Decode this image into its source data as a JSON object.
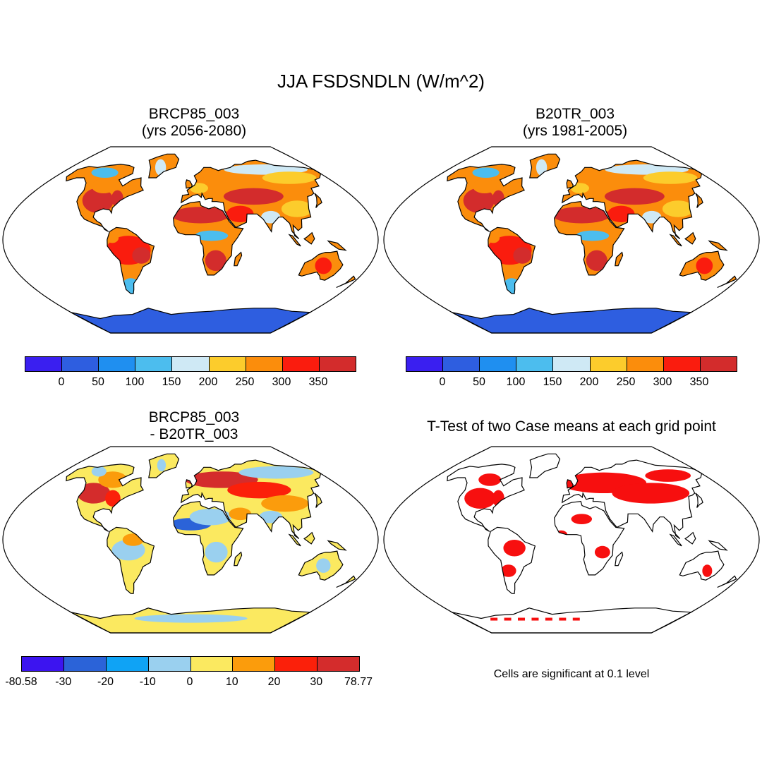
{
  "figure": {
    "title": "JJA FSDSNDLN (W/m^2)",
    "note": "Cells are significant at 0.1 level"
  },
  "panels": [
    {
      "id": "case",
      "title_line1": "BRCP85_003",
      "title_line2": "(yrs 2056-2080)",
      "colorbar": {
        "colors": [
          "#3a1ff0",
          "#2e5ee0",
          "#1f8ff0",
          "#4cbdee",
          "#cfe9f5",
          "#fccc2c",
          "#fb8d0c",
          "#fa1c0e",
          "#d32c2c"
        ],
        "labels": [
          "0",
          "50",
          "100",
          "150",
          "200",
          "250",
          "300",
          "350"
        ]
      }
    },
    {
      "id": "control",
      "title_line1": "B20TR_003",
      "title_line2": "(yrs 1981-2005)",
      "colorbar": {
        "colors": [
          "#3a1ff0",
          "#2e5ee0",
          "#1f8ff0",
          "#4cbdee",
          "#cfe9f5",
          "#fccc2c",
          "#fb8d0c",
          "#fa1c0e",
          "#d32c2c"
        ],
        "labels": [
          "0",
          "50",
          "100",
          "150",
          "200",
          "250",
          "300",
          "350"
        ]
      }
    },
    {
      "id": "difference",
      "title_line1": "BRCP85_003",
      "title_line2": "- B20TR_003",
      "colorbar": {
        "colors": [
          "#3c14f0",
          "#2b63d8",
          "#0fa3f5",
          "#9ad0ef",
          "#fbe960",
          "#fb9c0c",
          "#fb200a",
          "#d42c2c"
        ],
        "labels": [
          "-80.58",
          "-30",
          "-20",
          "-10",
          "0",
          "10",
          "20",
          "30",
          "78.77"
        ]
      }
    },
    {
      "id": "ttest",
      "title_line1": "T-Test of two Case means at each grid point",
      "title_line2": ""
    }
  ]
}
